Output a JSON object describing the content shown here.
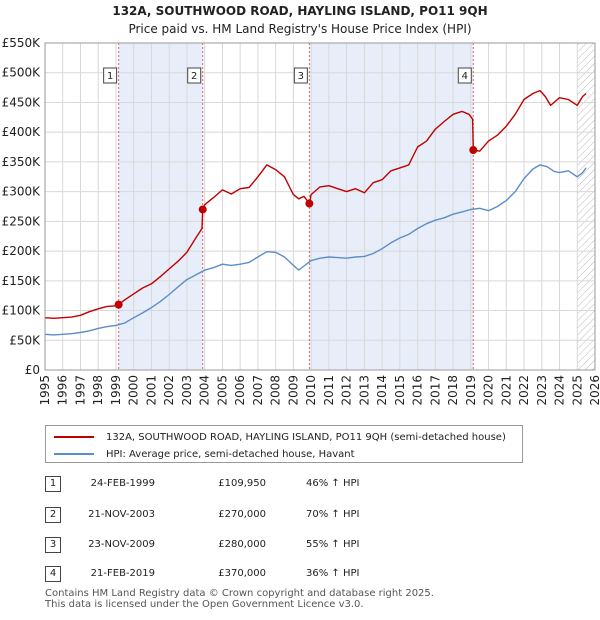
{
  "title": "132A, SOUTHWOOD ROAD, HAYLING ISLAND, PO11 9QH",
  "subtitle": "Price paid vs. HM Land Registry's House Price Index (HPI)",
  "legend": {
    "property": "132A, SOUTHWOOD ROAD, HAYLING ISLAND, PO11 9QH (semi-detached house)",
    "hpi": "HPI: Average price, semi-detached house, Havant"
  },
  "sales": [
    {
      "num": "1",
      "date": "24-FEB-1999",
      "price": "£109,950",
      "hpi": "46% ↑ HPI"
    },
    {
      "num": "2",
      "date": "21-NOV-2003",
      "price": "£270,000",
      "hpi": "70% ↑ HPI"
    },
    {
      "num": "3",
      "date": "23-NOV-2009",
      "price": "£280,000",
      "hpi": "55% ↑ HPI"
    },
    {
      "num": "4",
      "date": "21-FEB-2019",
      "price": "£370,000",
      "hpi": "36% ↑ HPI"
    }
  ],
  "footer": {
    "line1": "Contains HM Land Registry data © Crown copyright and database right 2025.",
    "line2": "This data is licensed under the Open Government Licence v3.0."
  },
  "colors": {
    "property_line": "#c00000",
    "hpi_line": "#5b8ec9",
    "shade": "#e8eef9",
    "marker_line": "#d66666"
  },
  "chart_data": {
    "type": "line",
    "title": "132A, SOUTHWOOD ROAD, HAYLING ISLAND, PO11 9QH",
    "subtitle": "Price paid vs. HM Land Registry's House Price Index (HPI)",
    "xlabel": "",
    "ylabel": "",
    "xlim": [
      1995,
      2026
    ],
    "ylim": [
      0,
      550000
    ],
    "x_ticks": [
      1995,
      1996,
      1997,
      1998,
      1999,
      2000,
      2001,
      2002,
      2003,
      2004,
      2005,
      2006,
      2007,
      2008,
      2009,
      2010,
      2011,
      2012,
      2013,
      2014,
      2015,
      2016,
      2017,
      2018,
      2019,
      2020,
      2021,
      2022,
      2023,
      2024,
      2025,
      2026
    ],
    "y_ticks": [
      {
        "value": 0,
        "label": "£0"
      },
      {
        "value": 50000,
        "label": "£50K"
      },
      {
        "value": 100000,
        "label": "£100K"
      },
      {
        "value": 150000,
        "label": "£150K"
      },
      {
        "value": 200000,
        "label": "£200K"
      },
      {
        "value": 250000,
        "label": "£250K"
      },
      {
        "value": 300000,
        "label": "£300K"
      },
      {
        "value": 350000,
        "label": "£350K"
      },
      {
        "value": 400000,
        "label": "£400K"
      },
      {
        "value": 450000,
        "label": "£450K"
      },
      {
        "value": 500000,
        "label": "£500K"
      },
      {
        "value": 550000,
        "label": "£550K"
      }
    ],
    "grid": true,
    "shaded_periods": [
      [
        1999.15,
        2003.89
      ],
      [
        2009.9,
        2019.14
      ]
    ],
    "future_hatch_from": 2025.0,
    "sale_markers": [
      {
        "label": "1",
        "x": 1999.15,
        "y": 109950
      },
      {
        "label": "2",
        "x": 2003.89,
        "y": 270000
      },
      {
        "label": "3",
        "x": 2009.9,
        "y": 280000
      },
      {
        "label": "4",
        "x": 2019.14,
        "y": 370000
      }
    ],
    "series": [
      {
        "name": "132A, SOUTHWOOD ROAD, HAYLING ISLAND, PO11 9QH (semi-detached house)",
        "x": [
          1995.0,
          1995.5,
          1996.0,
          1996.5,
          1997.0,
          1997.5,
          1998.0,
          1998.5,
          1999.0,
          1999.15,
          1999.5,
          2000.0,
          2000.5,
          2001.0,
          2001.5,
          2002.0,
          2002.5,
          2003.0,
          2003.5,
          2003.85,
          2003.89,
          2004.0,
          2004.5,
          2005.0,
          2005.5,
          2006.0,
          2006.5,
          2007.0,
          2007.5,
          2008.0,
          2008.5,
          2008.8,
          2009.0,
          2009.3,
          2009.6,
          2009.9,
          2010.0,
          2010.5,
          2011.0,
          2011.5,
          2012.0,
          2012.5,
          2013.0,
          2013.5,
          2014.0,
          2014.5,
          2015.0,
          2015.5,
          2016.0,
          2016.5,
          2017.0,
          2017.5,
          2018.0,
          2018.5,
          2018.9,
          2019.1,
          2019.14,
          2019.5,
          2020.0,
          2020.5,
          2021.0,
          2021.5,
          2022.0,
          2022.5,
          2022.9,
          2023.2,
          2023.5,
          2024.0,
          2024.5,
          2025.0,
          2025.3,
          2025.5
        ],
        "values": [
          88000,
          87000,
          88000,
          89000,
          92000,
          98000,
          103000,
          107000,
          108000,
          109950,
          118000,
          128000,
          138000,
          145000,
          157000,
          170000,
          183000,
          198000,
          222000,
          238000,
          270000,
          278000,
          290000,
          303000,
          296000,
          305000,
          307000,
          325000,
          345000,
          337000,
          325000,
          307000,
          295000,
          288000,
          292000,
          280000,
          295000,
          308000,
          310000,
          305000,
          300000,
          305000,
          298000,
          315000,
          320000,
          335000,
          340000,
          345000,
          375000,
          385000,
          405000,
          418000,
          430000,
          435000,
          430000,
          422000,
          370000,
          368000,
          385000,
          395000,
          410000,
          430000,
          455000,
          465000,
          470000,
          460000,
          445000,
          458000,
          455000,
          445000,
          460000,
          465000
        ]
      },
      {
        "name": "HPI: Average price, semi-detached house, Havant",
        "x": [
          1995.0,
          1995.5,
          1996.0,
          1996.5,
          1997.0,
          1997.5,
          1998.0,
          1998.5,
          1999.0,
          1999.5,
          2000.0,
          2000.5,
          2001.0,
          2001.5,
          2002.0,
          2002.5,
          2003.0,
          2003.5,
          2004.0,
          2004.5,
          2005.0,
          2005.5,
          2006.0,
          2006.5,
          2007.0,
          2007.5,
          2008.0,
          2008.5,
          2009.0,
          2009.3,
          2009.6,
          2010.0,
          2010.5,
          2011.0,
          2011.5,
          2012.0,
          2012.5,
          2013.0,
          2013.5,
          2014.0,
          2014.5,
          2015.0,
          2015.5,
          2016.0,
          2016.5,
          2017.0,
          2017.5,
          2018.0,
          2018.5,
          2019.0,
          2019.5,
          2020.0,
          2020.5,
          2021.0,
          2021.5,
          2022.0,
          2022.5,
          2022.9,
          2023.3,
          2023.7,
          2024.0,
          2024.5,
          2025.0,
          2025.3,
          2025.5
        ],
        "values": [
          60000,
          59000,
          60000,
          61000,
          63000,
          66000,
          70000,
          73000,
          75000,
          79000,
          88000,
          96000,
          105000,
          115000,
          127000,
          140000,
          152000,
          160000,
          168000,
          172000,
          178000,
          176000,
          178000,
          181000,
          190000,
          199000,
          198000,
          190000,
          176000,
          168000,
          175000,
          184000,
          188000,
          190000,
          189000,
          188000,
          190000,
          191000,
          196000,
          204000,
          214000,
          222000,
          228000,
          238000,
          246000,
          252000,
          256000,
          262000,
          266000,
          270000,
          272000,
          268000,
          275000,
          285000,
          300000,
          322000,
          338000,
          345000,
          342000,
          334000,
          332000,
          335000,
          325000,
          332000,
          340000
        ]
      }
    ]
  }
}
